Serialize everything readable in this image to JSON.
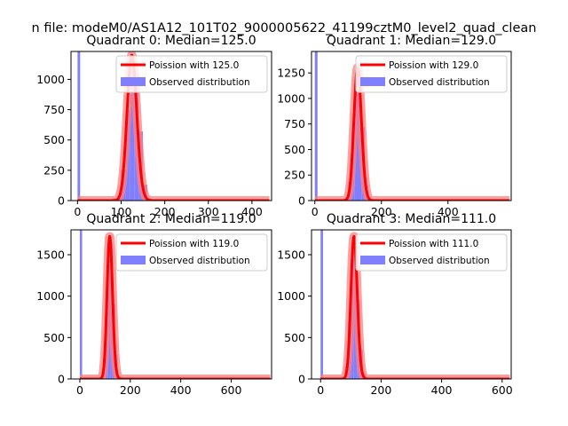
{
  "figure": {
    "suptitle": "n file: modeM0/AS1A12_101T02_9000005622_41199cztM0_level2_quad_clean"
  },
  "colors": {
    "fit_line": "#ff0000",
    "fit_band": "#ff7f7f",
    "histogram": "#7f7fff",
    "axis": "#000000"
  },
  "chart_data": [
    {
      "type": "bar",
      "title": "Quadrant 0: Median=125.0",
      "median": 125.0,
      "xlim": [
        -15,
        445
      ],
      "ylim": [
        0,
        1230
      ],
      "xticks": [
        0,
        100,
        200,
        300,
        400
      ],
      "yticks": [
        0,
        250,
        500,
        750,
        1000
      ],
      "legend": {
        "position": "top-right",
        "fit_label": "Poission with 125.0",
        "hist_label": "Observed distribution"
      },
      "histogram": {
        "bin_width": 10,
        "spike": {
          "x": 0,
          "width": 6,
          "value": 1230
        },
        "bins": [
          [
            70,
            10
          ],
          [
            80,
            20
          ],
          [
            90,
            40
          ],
          [
            100,
            260
          ],
          [
            110,
            750
          ],
          [
            120,
            1160
          ],
          [
            130,
            1050
          ],
          [
            140,
            570
          ],
          [
            150,
            130
          ],
          [
            160,
            20
          ],
          [
            170,
            5
          ]
        ]
      },
      "poisson_peak": 1200
    },
    {
      "type": "bar",
      "title": "Quadrant 1: Median=129.0",
      "median": 129.0,
      "xlim": [
        -10,
        590
      ],
      "ylim": [
        0,
        1460
      ],
      "xticks": [
        0,
        200,
        400
      ],
      "yticks": [
        0,
        250,
        500,
        750,
        1000,
        1250
      ],
      "legend": {
        "position": "top-right",
        "fit_label": "Poission with 129.0",
        "hist_label": "Observed distribution"
      },
      "histogram": {
        "bin_width": 10,
        "spike": {
          "x": 0,
          "width": 8,
          "value": 1460
        },
        "bins": [
          [
            80,
            10
          ],
          [
            90,
            30
          ],
          [
            100,
            180
          ],
          [
            110,
            680
          ],
          [
            120,
            1250
          ],
          [
            130,
            1260
          ],
          [
            140,
            720
          ],
          [
            150,
            150
          ],
          [
            160,
            30
          ]
        ]
      },
      "poisson_peak": 1300
    },
    {
      "type": "bar",
      "title": "Quadrant 2: Median=119.0",
      "median": 119.0,
      "xlim": [
        -35,
        760
      ],
      "ylim": [
        0,
        1800
      ],
      "xticks": [
        0,
        200,
        400,
        600
      ],
      "yticks": [
        0,
        500,
        1000,
        1500
      ],
      "legend": {
        "position": "top-right",
        "fit_label": "Poission with 119.0",
        "hist_label": "Observed distribution"
      },
      "histogram": {
        "bin_width": 10,
        "spike": {
          "x": 0,
          "width": 9,
          "value": 1800
        },
        "bins": [
          [
            80,
            20
          ],
          [
            90,
            120
          ],
          [
            100,
            700
          ],
          [
            110,
            1500
          ],
          [
            120,
            1650
          ],
          [
            130,
            900
          ],
          [
            140,
            300
          ],
          [
            150,
            40
          ]
        ]
      },
      "poisson_peak": 1720
    },
    {
      "type": "bar",
      "title": "Quadrant 3: Median=111.0",
      "median": 111.0,
      "xlim": [
        -30,
        630
      ],
      "ylim": [
        0,
        1800
      ],
      "xticks": [
        0,
        200,
        400,
        600
      ],
      "yticks": [
        0,
        500,
        1000,
        1500
      ],
      "legend": {
        "position": "top-right",
        "fit_label": "Poission with 111.0",
        "hist_label": "Observed distribution"
      },
      "histogram": {
        "bin_width": 10,
        "spike": {
          "x": 0,
          "width": 8,
          "value": 1800
        },
        "bins": [
          [
            70,
            20
          ],
          [
            80,
            150
          ],
          [
            90,
            700
          ],
          [
            100,
            1450
          ],
          [
            110,
            1600
          ],
          [
            120,
            950
          ],
          [
            130,
            350
          ],
          [
            140,
            60
          ]
        ]
      },
      "poisson_peak": 1720
    }
  ]
}
